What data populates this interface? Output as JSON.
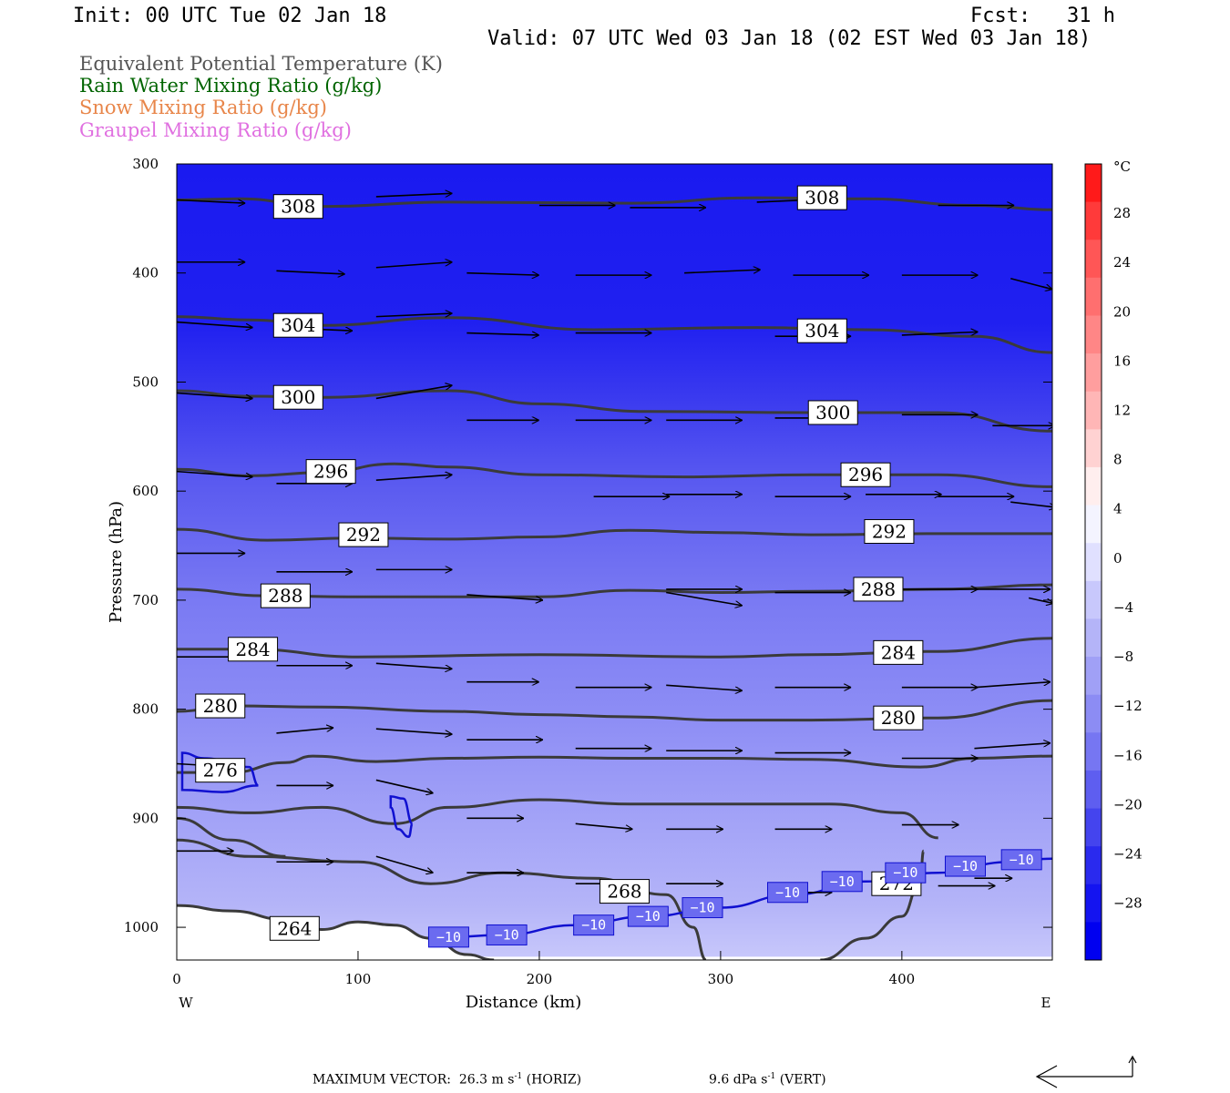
{
  "header": {
    "init": "Init: 00 UTC Tue 02 Jan 18",
    "fcst": "Fcst:   31 h",
    "valid": "Valid: 07 UTC Wed 03 Jan 18 (02 EST Wed 03 Jan 18)"
  },
  "legend": [
    {
      "text": "Equivalent Potential Temperature (K)",
      "color": "#555555"
    },
    {
      "text": "Rain Water Mixing Ratio (g/kg)",
      "color": "#006400"
    },
    {
      "text": "Snow Mixing Ratio (g/kg)",
      "color": "#e8864a"
    },
    {
      "text": "Graupel Mixing Ratio (g/kg)",
      "color": "#e070e0"
    }
  ],
  "footer": {
    "max_label": "MAXIMUM VECTOR:",
    "horiz_value": "26.3",
    "horiz_unit": "m s",
    "horiz_exp": "-1",
    "horiz_tag": "(HORIZ)",
    "vert_value": "9.6",
    "vert_unit": "dPa s",
    "vert_exp": "-1",
    "vert_tag": "(VERT)"
  },
  "chart_data": {
    "type": "cross-section",
    "xlabel": "Distance (km)",
    "ylabel": "Pressure (hPa)",
    "xlim": [
      0,
      483
    ],
    "ylim": [
      1030,
      300
    ],
    "x_ticks": [
      0,
      100,
      200,
      300,
      400
    ],
    "y_ticks": [
      300,
      400,
      500,
      600,
      700,
      800,
      900,
      1000
    ],
    "x_end_labels": {
      "left": "W",
      "right": "E"
    },
    "colorbar": {
      "unit": "°C",
      "labels": [
        "28",
        "24",
        "20",
        "16",
        "12",
        "8",
        "4",
        "0",
        "−4",
        "−8",
        "−12",
        "−16",
        "−20",
        "−24",
        "−28"
      ],
      "levels": [
        28,
        24,
        20,
        16,
        12,
        8,
        4,
        0,
        -4,
        -8,
        -12,
        -16,
        -20,
        -24,
        -28
      ],
      "colors": [
        "#ff1a1a",
        "#ff3a3a",
        "#ff5656",
        "#ff6f6f",
        "#ff8686",
        "#ff9e9e",
        "#ffb6b6",
        "#ffd2d2",
        "#ffeeee",
        "#f4f4ff",
        "#e0e0ff",
        "#c8c8fc",
        "#b4b4f8",
        "#a0a0f6",
        "#8c8cf4",
        "#7676f2",
        "#5e5ef0",
        "#4444ee",
        "#2a2aee",
        "#1414f0",
        "#0000f0"
      ]
    },
    "theta_e_contours": [
      {
        "label": "308",
        "points": [
          [
            0,
            333
          ],
          [
            35,
            332
          ],
          [
            80,
            339
          ],
          [
            150,
            335
          ],
          [
            250,
            336
          ],
          [
            320,
            331
          ],
          [
            380,
            332
          ],
          [
            440,
            338
          ],
          [
            483,
            342
          ]
        ],
        "label_at": [
          [
            67,
            339
          ],
          [
            356,
            331
          ]
        ]
      },
      {
        "label": "304",
        "points": [
          [
            0,
            440
          ],
          [
            40,
            443
          ],
          [
            80,
            448
          ],
          [
            150,
            441
          ],
          [
            230,
            452
          ],
          [
            320,
            450
          ],
          [
            380,
            452
          ],
          [
            440,
            458
          ],
          [
            483,
            473
          ]
        ],
        "label_at": [
          [
            67,
            448
          ],
          [
            356,
            453
          ]
        ]
      },
      {
        "label": "300",
        "points": [
          [
            0,
            508
          ],
          [
            40,
            513
          ],
          [
            80,
            514
          ],
          [
            150,
            508
          ],
          [
            200,
            520
          ],
          [
            260,
            527
          ],
          [
            350,
            528
          ],
          [
            420,
            528
          ],
          [
            483,
            545
          ]
        ],
        "label_at": [
          [
            67,
            514
          ],
          [
            362,
            528
          ]
        ]
      },
      {
        "label": "296",
        "points": [
          [
            0,
            580
          ],
          [
            40,
            586
          ],
          [
            80,
            583
          ],
          [
            120,
            575
          ],
          [
            150,
            578
          ],
          [
            200,
            585
          ],
          [
            280,
            587
          ],
          [
            350,
            585
          ],
          [
            420,
            585
          ],
          [
            483,
            596
          ]
        ],
        "label_at": [
          [
            85,
            582
          ],
          [
            380,
            585
          ]
        ]
      },
      {
        "label": "292",
        "points": [
          [
            0,
            635
          ],
          [
            50,
            645
          ],
          [
            100,
            643
          ],
          [
            150,
            644
          ],
          [
            200,
            642
          ],
          [
            250,
            636
          ],
          [
            300,
            638
          ],
          [
            350,
            640
          ],
          [
            420,
            639
          ],
          [
            483,
            639
          ]
        ],
        "label_at": [
          [
            103,
            640
          ],
          [
            393,
            637
          ]
        ]
      },
      {
        "label": "288",
        "points": [
          [
            0,
            690
          ],
          [
            50,
            696
          ],
          [
            100,
            697
          ],
          [
            200,
            697
          ],
          [
            250,
            691
          ],
          [
            300,
            693
          ],
          [
            350,
            692
          ],
          [
            420,
            690
          ],
          [
            483,
            686
          ]
        ],
        "label_at": [
          [
            60,
            696
          ],
          [
            387,
            690
          ]
        ]
      },
      {
        "label": "284",
        "points": [
          [
            0,
            745
          ],
          [
            40,
            745
          ],
          [
            100,
            752
          ],
          [
            200,
            750
          ],
          [
            300,
            752
          ],
          [
            350,
            750
          ],
          [
            420,
            747
          ],
          [
            483,
            735
          ]
        ],
        "label_at": [
          [
            42,
            745
          ],
          [
            398,
            748
          ]
        ]
      },
      {
        "label": "280",
        "points": [
          [
            0,
            802
          ],
          [
            30,
            797
          ],
          [
            80,
            798
          ],
          [
            150,
            802
          ],
          [
            200,
            805
          ],
          [
            250,
            807
          ],
          [
            300,
            810
          ],
          [
            350,
            810
          ],
          [
            420,
            808
          ],
          [
            483,
            792
          ]
        ],
        "label_at": [
          [
            24,
            797
          ],
          [
            398,
            808
          ]
        ]
      },
      {
        "label": "276",
        "points": [
          [
            0,
            858
          ],
          [
            30,
            858
          ],
          [
            60,
            849
          ],
          [
            75,
            843
          ],
          [
            110,
            848
          ],
          [
            150,
            845
          ],
          [
            200,
            844
          ],
          [
            250,
            845
          ],
          [
            300,
            845
          ],
          [
            350,
            846
          ],
          [
            410,
            853
          ],
          [
            440,
            845
          ],
          [
            483,
            843
          ]
        ],
        "label_at": [
          [
            24,
            856
          ]
        ]
      },
      {
        "label": "",
        "points": [
          [
            0,
            890
          ],
          [
            40,
            895
          ],
          [
            80,
            890
          ],
          [
            120,
            905
          ],
          [
            150,
            890
          ],
          [
            200,
            883
          ],
          [
            250,
            887
          ],
          [
            300,
            887
          ],
          [
            360,
            887
          ],
          [
            400,
            895
          ],
          [
            420,
            918
          ]
        ],
        "label_at": []
      },
      {
        "label": "268",
        "points": [
          [
            0,
            920
          ],
          [
            40,
            935
          ],
          [
            100,
            940
          ],
          [
            140,
            960
          ],
          [
            180,
            950
          ],
          [
            230,
            955
          ],
          [
            270,
            970
          ],
          [
            285,
            1000
          ],
          [
            292,
            1030
          ]
        ],
        "label_at": [
          [
            247,
            967
          ]
        ]
      },
      {
        "label": "272",
        "points": [
          [
            355,
            1030
          ],
          [
            380,
            1010
          ],
          [
            400,
            990
          ],
          [
            410,
            960
          ],
          [
            412,
            930
          ]
        ],
        "label_at": [
          [
            397,
            960
          ]
        ]
      },
      {
        "label": "264",
        "points": [
          [
            0,
            980
          ],
          [
            30,
            985
          ],
          [
            60,
            993
          ],
          [
            80,
            1002
          ],
          [
            100,
            995
          ],
          [
            120,
            998
          ],
          [
            140,
            1010
          ],
          [
            160,
            1025
          ],
          [
            175,
            1030
          ]
        ],
        "label_at": [
          [
            65,
            1001
          ]
        ]
      },
      {
        "label": "",
        "points": [
          [
            0,
            900
          ],
          [
            30,
            920
          ],
          [
            60,
            935
          ]
        ],
        "label_at": []
      }
    ],
    "isotherm_minus10": {
      "label": "−10",
      "points": [
        [
          140,
          1010
        ],
        [
          180,
          1007
        ],
        [
          220,
          998
        ],
        [
          260,
          990
        ],
        [
          300,
          982
        ],
        [
          340,
          970
        ],
        [
          380,
          958
        ],
        [
          420,
          950
        ],
        [
          460,
          940
        ],
        [
          483,
          937
        ]
      ],
      "label_at": [
        [
          150,
          1009
        ],
        [
          182,
          1007
        ],
        [
          230,
          998
        ],
        [
          260,
          990
        ],
        [
          290,
          982
        ],
        [
          337,
          968
        ],
        [
          367,
          958
        ],
        [
          402,
          950
        ],
        [
          435,
          944
        ],
        [
          466,
          938
        ]
      ],
      "small_loops": [
        {
          "points": [
            [
              3,
              840
            ],
            [
              15,
              845
            ],
            [
              40,
              853
            ],
            [
              45,
              870
            ],
            [
              25,
              876
            ],
            [
              3,
              874
            ]
          ]
        },
        {
          "points": [
            [
              118,
              880
            ],
            [
              125,
              882
            ],
            [
              130,
              905
            ],
            [
              128,
              917
            ],
            [
              122,
              910
            ],
            [
              118,
              890
            ]
          ]
        }
      ]
    },
    "wind_vectors": [
      [
        0,
        333,
        36,
        3
      ],
      [
        110,
        330,
        40,
        -3
      ],
      [
        200,
        338,
        40,
        0
      ],
      [
        250,
        340,
        40,
        0
      ],
      [
        320,
        335,
        40,
        -3
      ],
      [
        420,
        338,
        40,
        0
      ],
      [
        0,
        390,
        36,
        0
      ],
      [
        55,
        398,
        36,
        3
      ],
      [
        110,
        395,
        40,
        -5
      ],
      [
        160,
        400,
        38,
        2
      ],
      [
        220,
        402,
        40,
        0
      ],
      [
        280,
        400,
        40,
        -3
      ],
      [
        340,
        402,
        40,
        0
      ],
      [
        400,
        402,
        40,
        0
      ],
      [
        460,
        405,
        22,
        10
      ],
      [
        0,
        445,
        40,
        5
      ],
      [
        55,
        450,
        40,
        3
      ],
      [
        110,
        440,
        40,
        -3
      ],
      [
        160,
        455,
        38,
        2
      ],
      [
        220,
        455,
        40,
        0
      ],
      [
        330,
        458,
        40,
        0
      ],
      [
        400,
        457,
        40,
        -3
      ],
      [
        0,
        510,
        40,
        5
      ],
      [
        110,
        515,
        40,
        -12
      ],
      [
        160,
        535,
        38,
        0
      ],
      [
        220,
        535,
        40,
        0
      ],
      [
        270,
        535,
        40,
        0
      ],
      [
        330,
        533,
        40,
        0
      ],
      [
        400,
        530,
        40,
        0
      ],
      [
        450,
        540,
        33,
        0
      ],
      [
        0,
        582,
        40,
        5
      ],
      [
        55,
        593,
        40,
        0
      ],
      [
        110,
        590,
        40,
        -5
      ],
      [
        230,
        605,
        40,
        0
      ],
      [
        270,
        603,
        40,
        0
      ],
      [
        330,
        605,
        40,
        0
      ],
      [
        380,
        603,
        40,
        0
      ],
      [
        420,
        605,
        40,
        0
      ],
      [
        460,
        610,
        24,
        5
      ],
      [
        0,
        657,
        36,
        0
      ],
      [
        55,
        674,
        40,
        0
      ],
      [
        110,
        672,
        40,
        0
      ],
      [
        160,
        695,
        40,
        5
      ],
      [
        270,
        690,
        40,
        0
      ],
      [
        270,
        693,
        40,
        12
      ],
      [
        330,
        693,
        40,
        0
      ],
      [
        400,
        690,
        40,
        0
      ],
      [
        440,
        690,
        40,
        0
      ],
      [
        470,
        698,
        13,
        5
      ],
      [
        0,
        752,
        40,
        0
      ],
      [
        55,
        760,
        40,
        0
      ],
      [
        110,
        758,
        40,
        5
      ],
      [
        160,
        775,
        38,
        0
      ],
      [
        220,
        780,
        40,
        0
      ],
      [
        270,
        778,
        40,
        5
      ],
      [
        330,
        780,
        40,
        0
      ],
      [
        400,
        780,
        40,
        0
      ],
      [
        440,
        780,
        40,
        -5
      ],
      [
        55,
        822,
        30,
        -5
      ],
      [
        110,
        818,
        40,
        5
      ],
      [
        160,
        828,
        40,
        0
      ],
      [
        220,
        836,
        40,
        0
      ],
      [
        270,
        838,
        40,
        0
      ],
      [
        330,
        840,
        40,
        0
      ],
      [
        400,
        845,
        40,
        0
      ],
      [
        440,
        836,
        40,
        -5
      ],
      [
        0,
        850,
        30,
        3
      ],
      [
        55,
        870,
        30,
        0
      ],
      [
        110,
        865,
        30,
        12
      ],
      [
        160,
        900,
        30,
        0
      ],
      [
        220,
        905,
        30,
        5
      ],
      [
        270,
        910,
        30,
        0
      ],
      [
        330,
        910,
        30,
        0
      ],
      [
        400,
        906,
        30,
        0
      ],
      [
        0,
        930,
        30,
        0
      ],
      [
        55,
        940,
        30,
        0
      ],
      [
        110,
        935,
        30,
        15
      ],
      [
        160,
        950,
        30,
        0
      ],
      [
        220,
        960,
        30,
        0
      ],
      [
        270,
        960,
        30,
        0
      ],
      [
        330,
        968,
        30,
        0
      ],
      [
        420,
        962,
        30,
        0
      ],
      [
        440,
        955,
        20,
        0
      ]
    ],
    "max_vector_legend": {
      "horiz_arrow": "left",
      "vert_arrow": "up"
    }
  }
}
